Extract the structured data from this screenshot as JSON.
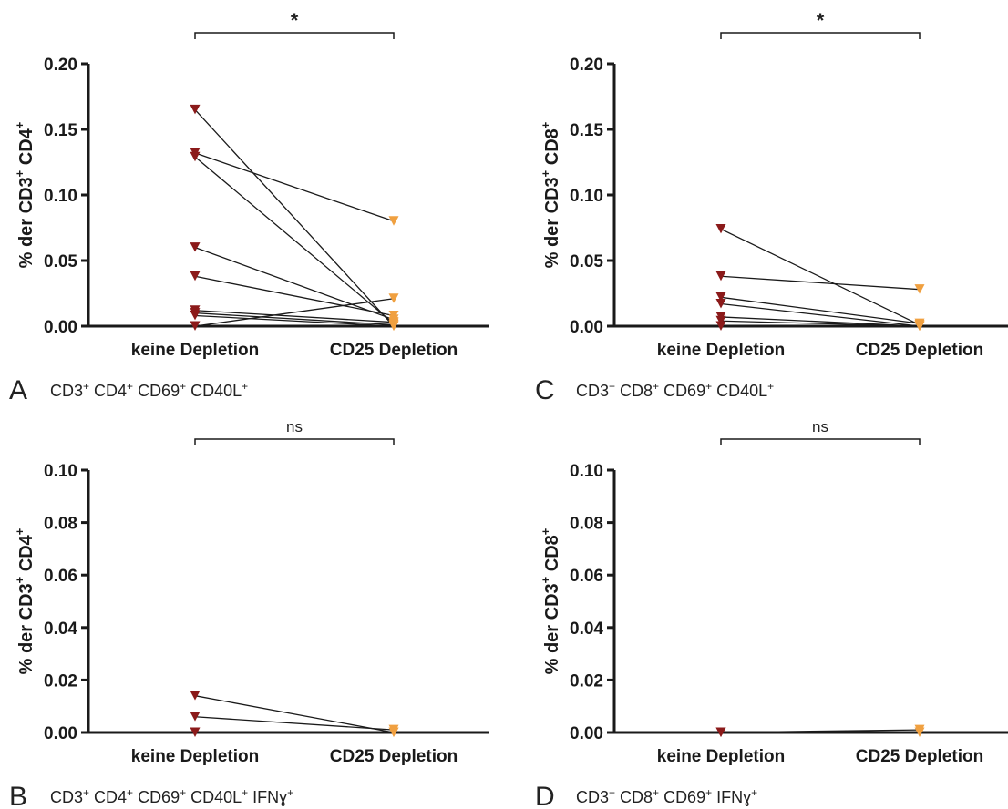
{
  "colors": {
    "keine": "#8b1a1a",
    "cd25": "#f0a040",
    "line": "#1a1a1a"
  },
  "chart_data": [
    {
      "id": "A",
      "type": "scatter",
      "categories": [
        "keine Depletion",
        "CD25 Depletion"
      ],
      "ylabel": {
        "prefix": "% der CD3",
        "sup1": "+",
        "mid": " CD4",
        "sup2": "+"
      },
      "ylim": [
        0,
        0.2
      ],
      "yticks": [
        "0.00",
        "0.05",
        "0.10",
        "0.15",
        "0.20"
      ],
      "significance": "*",
      "caption": {
        "letter": "A",
        "parts": [
          {
            "t": "CD3"
          },
          {
            "s": "+"
          },
          {
            "t": " CD4"
          },
          {
            "s": "+"
          },
          {
            "t": " CD69"
          },
          {
            "s": "+"
          },
          {
            "t": " CD40L"
          },
          {
            "s": "+"
          }
        ]
      },
      "pairs": [
        [
          0.165,
          0.0
        ],
        [
          0.132,
          0.08
        ],
        [
          0.129,
          0.002
        ],
        [
          0.06,
          0.005
        ],
        [
          0.038,
          0.008
        ],
        [
          0.012,
          0.003
        ],
        [
          0.01,
          0.001
        ],
        [
          0.008,
          0.0
        ],
        [
          0.0,
          0.021
        ]
      ]
    },
    {
      "id": "C",
      "type": "scatter",
      "categories": [
        "keine Depletion",
        "CD25 Depletion"
      ],
      "ylabel": {
        "prefix": "% der CD3",
        "sup1": "+",
        "mid": " CD8",
        "sup2": "+"
      },
      "ylim": [
        0,
        0.2
      ],
      "yticks": [
        "0.00",
        "0.05",
        "0.10",
        "0.15",
        "0.20"
      ],
      "significance": "*",
      "caption": {
        "letter": "C",
        "parts": [
          {
            "t": "CD3"
          },
          {
            "s": "+"
          },
          {
            "t": " CD8"
          },
          {
            "s": "+"
          },
          {
            "t": " CD69"
          },
          {
            "s": "+"
          },
          {
            "t": " CD40L"
          },
          {
            "s": "+"
          }
        ]
      },
      "pairs": [
        [
          0.074,
          0.001
        ],
        [
          0.038,
          0.028
        ],
        [
          0.022,
          0.002
        ],
        [
          0.017,
          0.0
        ],
        [
          0.007,
          0.0
        ],
        [
          0.004,
          0.0
        ],
        [
          0.0,
          0.0
        ]
      ]
    },
    {
      "id": "B",
      "type": "scatter",
      "categories": [
        "keine Depletion",
        "CD25 Depletion"
      ],
      "ylabel": {
        "prefix": "% der CD3",
        "sup1": "+",
        "mid": " CD4",
        "sup2": "+"
      },
      "ylim": [
        0,
        0.1
      ],
      "yticks": [
        "0.00",
        "0.02",
        "0.04",
        "0.06",
        "0.08",
        "0.10"
      ],
      "significance": "ns",
      "caption": {
        "letter": "B",
        "parts": [
          {
            "t": "CD3"
          },
          {
            "s": "+"
          },
          {
            "t": " CD4"
          },
          {
            "s": "+"
          },
          {
            "t": " CD69"
          },
          {
            "s": "+"
          },
          {
            "t": " CD40L"
          },
          {
            "s": "+"
          },
          {
            "t": " IFNɣ"
          },
          {
            "s": "+"
          }
        ]
      },
      "pairs": [
        [
          0.014,
          0.0
        ],
        [
          0.006,
          0.001
        ],
        [
          0.0,
          0.0
        ]
      ]
    },
    {
      "id": "D",
      "type": "scatter",
      "categories": [
        "keine Depletion",
        "CD25 Depletion"
      ],
      "ylabel": {
        "prefix": "% der CD3",
        "sup1": "+",
        "mid": " CD8",
        "sup2": "+"
      },
      "ylim": [
        0,
        0.1
      ],
      "yticks": [
        "0.00",
        "0.02",
        "0.04",
        "0.06",
        "0.08",
        "0.10"
      ],
      "significance": "ns",
      "caption": {
        "letter": "D",
        "parts": [
          {
            "t": "CD3"
          },
          {
            "s": "+"
          },
          {
            "t": " CD8"
          },
          {
            "s": "+"
          },
          {
            "t": " CD69"
          },
          {
            "s": "+"
          },
          {
            "t": " IFNɣ"
          },
          {
            "s": "+"
          }
        ]
      },
      "pairs": [
        [
          0.0,
          0.001
        ],
        [
          0.0,
          0.0
        ]
      ]
    }
  ]
}
